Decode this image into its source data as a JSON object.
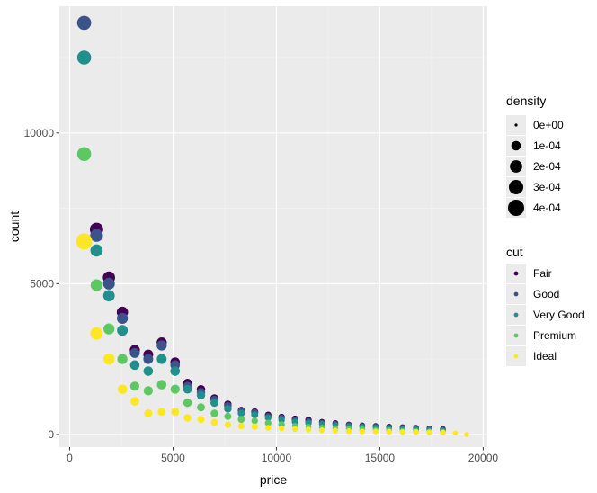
{
  "chart_data": {
    "type": "scatter",
    "xlabel": "price",
    "ylabel": "count",
    "xlim": [
      -500,
      20200
    ],
    "ylim": [
      -420,
      14200
    ],
    "x_ticks": [
      0,
      5000,
      10000,
      15000,
      20000
    ],
    "x_tick_labels": [
      "0",
      "5000",
      "10000",
      "15000",
      "20000"
    ],
    "y_ticks": [
      0,
      5000,
      10000
    ],
    "y_tick_labels": [
      "0",
      "5000",
      "10000"
    ],
    "grid": true,
    "legend_position": "right",
    "size_legend": {
      "title": "density",
      "entries": [
        {
          "label": "0e+00",
          "value": 0
        },
        {
          "label": "1e-04",
          "value": 0.0001
        },
        {
          "label": "2e-04",
          "value": 0.0002
        },
        {
          "label": "3e-04",
          "value": 0.0003
        },
        {
          "label": "4e-04",
          "value": 0.0004
        }
      ]
    },
    "x": [
      700,
      1300,
      1900,
      2550,
      3150,
      3800,
      4450,
      5100,
      5700,
      6350,
      7000,
      7650,
      8300,
      8950,
      9600,
      10250,
      10900,
      11550,
      12200,
      12850,
      13500,
      14150,
      14800,
      15450,
      16100,
      16750,
      17400,
      18050,
      18650,
      19200
    ],
    "series": [
      {
        "name": "Fair",
        "color": "#440154",
        "values": [
          null,
          6800,
          5200,
          4050,
          2800,
          2650,
          3050,
          2400,
          1700,
          1500,
          1200,
          1000,
          800,
          750,
          650,
          580,
          520,
          480,
          420,
          380,
          330,
          300,
          280,
          260,
          240,
          220,
          200,
          180,
          null,
          null
        ],
        "density": [
          null,
          0.00025,
          0.0002,
          0.00016,
          0.00012,
          0.00011,
          0.00012,
          0.0001,
          8e-05,
          7e-05,
          6e-05,
          5e-05,
          4e-05,
          4e-05,
          3e-05,
          3e-05,
          3e-05,
          3e-05,
          2e-05,
          2e-05,
          2e-05,
          2e-05,
          2e-05,
          2e-05,
          2e-05,
          2e-05,
          2e-05,
          2e-05,
          null,
          null
        ]
      },
      {
        "name": "Good",
        "color": "#3B528B",
        "values": [
          13650,
          6600,
          5000,
          3850,
          2700,
          2500,
          2950,
          2300,
          1600,
          1400,
          1150,
          950,
          780,
          720,
          600,
          550,
          480,
          430,
          390,
          350,
          310,
          280,
          260,
          240,
          220,
          200,
          180,
          160,
          null,
          null
        ],
        "density": [
          0.00028,
          0.00022,
          0.00018,
          0.00015,
          0.00011,
          0.00011,
          0.00012,
          0.0001,
          8e-05,
          7e-05,
          6e-05,
          5e-05,
          4e-05,
          4e-05,
          3e-05,
          3e-05,
          3e-05,
          3e-05,
          2e-05,
          2e-05,
          2e-05,
          2e-05,
          2e-05,
          2e-05,
          2e-05,
          2e-05,
          2e-05,
          2e-05,
          null,
          null
        ]
      },
      {
        "name": "Very Good",
        "color": "#21908C",
        "values": [
          12500,
          6100,
          4600,
          3450,
          2300,
          2100,
          2500,
          2100,
          1500,
          1300,
          1050,
          850,
          700,
          650,
          550,
          480,
          420,
          380,
          350,
          310,
          270,
          250,
          230,
          210,
          190,
          170,
          150,
          130,
          null,
          null
        ],
        "density": [
          0.00028,
          0.0002,
          0.00017,
          0.00014,
          0.0001,
          0.0001,
          0.00011,
          0.0001,
          8e-05,
          7e-05,
          6e-05,
          5e-05,
          4e-05,
          4e-05,
          3e-05,
          3e-05,
          3e-05,
          3e-05,
          2e-05,
          2e-05,
          2e-05,
          2e-05,
          2e-05,
          2e-05,
          2e-05,
          2e-05,
          2e-05,
          2e-05,
          null,
          null
        ]
      },
      {
        "name": "Premium",
        "color": "#5DC863",
        "values": [
          9300,
          4950,
          3500,
          2500,
          1600,
          1450,
          1650,
          1500,
          1050,
          900,
          700,
          600,
          500,
          450,
          380,
          330,
          290,
          260,
          230,
          210,
          190,
          170,
          150,
          140,
          120,
          110,
          100,
          90,
          null,
          null
        ],
        "density": [
          0.00028,
          0.00018,
          0.00015,
          0.00012,
          9e-05,
          9e-05,
          0.0001,
          9e-05,
          7e-05,
          6e-05,
          5e-05,
          4e-05,
          4e-05,
          3e-05,
          3e-05,
          3e-05,
          2e-05,
          2e-05,
          2e-05,
          2e-05,
          2e-05,
          2e-05,
          2e-05,
          2e-05,
          2e-05,
          2e-05,
          2e-05,
          2e-05,
          null,
          null
        ]
      },
      {
        "name": "Ideal",
        "color": "#FDE725",
        "values": [
          6400,
          3350,
          2500,
          1500,
          1100,
          700,
          750,
          750,
          550,
          500,
          400,
          320,
          280,
          260,
          220,
          200,
          180,
          160,
          140,
          130,
          110,
          100,
          100,
          90,
          80,
          80,
          70,
          60,
          50,
          0
        ],
        "density": [
          0.0004,
          0.00021,
          0.00016,
          0.0001,
          8e-05,
          6e-05,
          6e-05,
          6e-05,
          5e-05,
          4e-05,
          4e-05,
          3e-05,
          3e-05,
          3e-05,
          2e-05,
          2e-05,
          2e-05,
          2e-05,
          2e-05,
          2e-05,
          2e-05,
          2e-05,
          2e-05,
          2e-05,
          2e-05,
          2e-05,
          2e-05,
          2e-05,
          1e-05,
          1e-05
        ]
      }
    ],
    "color_legend": {
      "title": "cut",
      "entries": [
        {
          "label": "Fair",
          "color": "#440154"
        },
        {
          "label": "Good",
          "color": "#3B528B"
        },
        {
          "label": "Very Good",
          "color": "#21908C"
        },
        {
          "label": "Premium",
          "color": "#5DC863"
        },
        {
          "label": "Ideal",
          "color": "#FDE725"
        }
      ]
    }
  },
  "colors": {
    "panel_background": "#EBEBEB",
    "grid_major": "#FFFFFF",
    "grid_minor": "#F5F5F5",
    "size_legend_key": "#000000"
  }
}
